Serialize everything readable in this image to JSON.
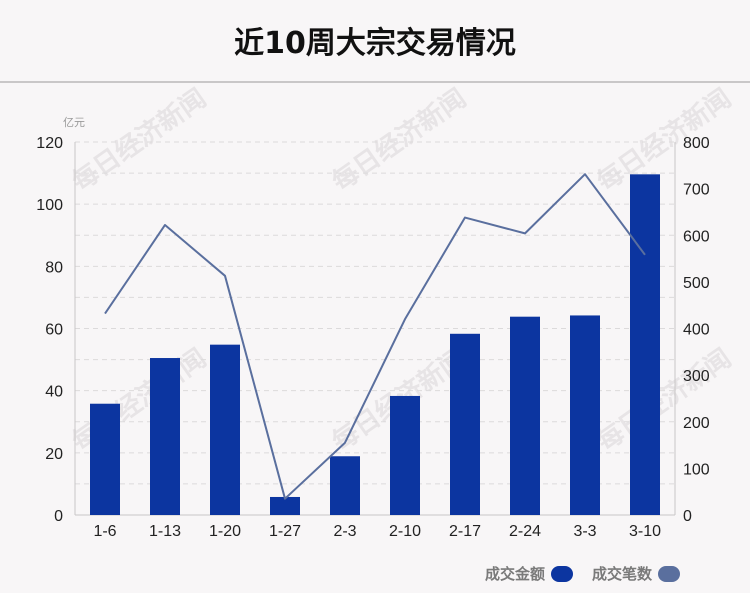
{
  "page_title": "近10周大宗交易情况",
  "watermark_text": "每日经济新闻",
  "chart_data": {
    "type": "bar",
    "categories": [
      "1-6",
      "1-13",
      "1-20",
      "1-27",
      "2-3",
      "2-10",
      "2-17",
      "2-24",
      "3-3",
      "3-10"
    ],
    "series": [
      {
        "name": "成交金额",
        "kind": "bar",
        "axis": "left",
        "color": "#0c35a0",
        "values": [
          35.8,
          50.5,
          54.8,
          5.8,
          18.9,
          38.3,
          58.3,
          63.8,
          64.2,
          109.6
        ]
      },
      {
        "name": "成交笔数",
        "kind": "line",
        "axis": "right",
        "color": "#5a6f9e",
        "values": [
          432,
          622,
          513,
          35,
          155,
          420,
          638,
          604,
          731,
          558
        ]
      }
    ],
    "y_left": {
      "unit": "亿元",
      "ylim": [
        0,
        120
      ],
      "ticks": [
        0,
        20,
        40,
        60,
        80,
        100,
        120
      ]
    },
    "y_right": {
      "ylim": [
        0,
        800
      ],
      "ticks": [
        0,
        100,
        200,
        300,
        400,
        500,
        600,
        700,
        800
      ]
    },
    "grid": true,
    "legend_position": "bottom-right"
  }
}
